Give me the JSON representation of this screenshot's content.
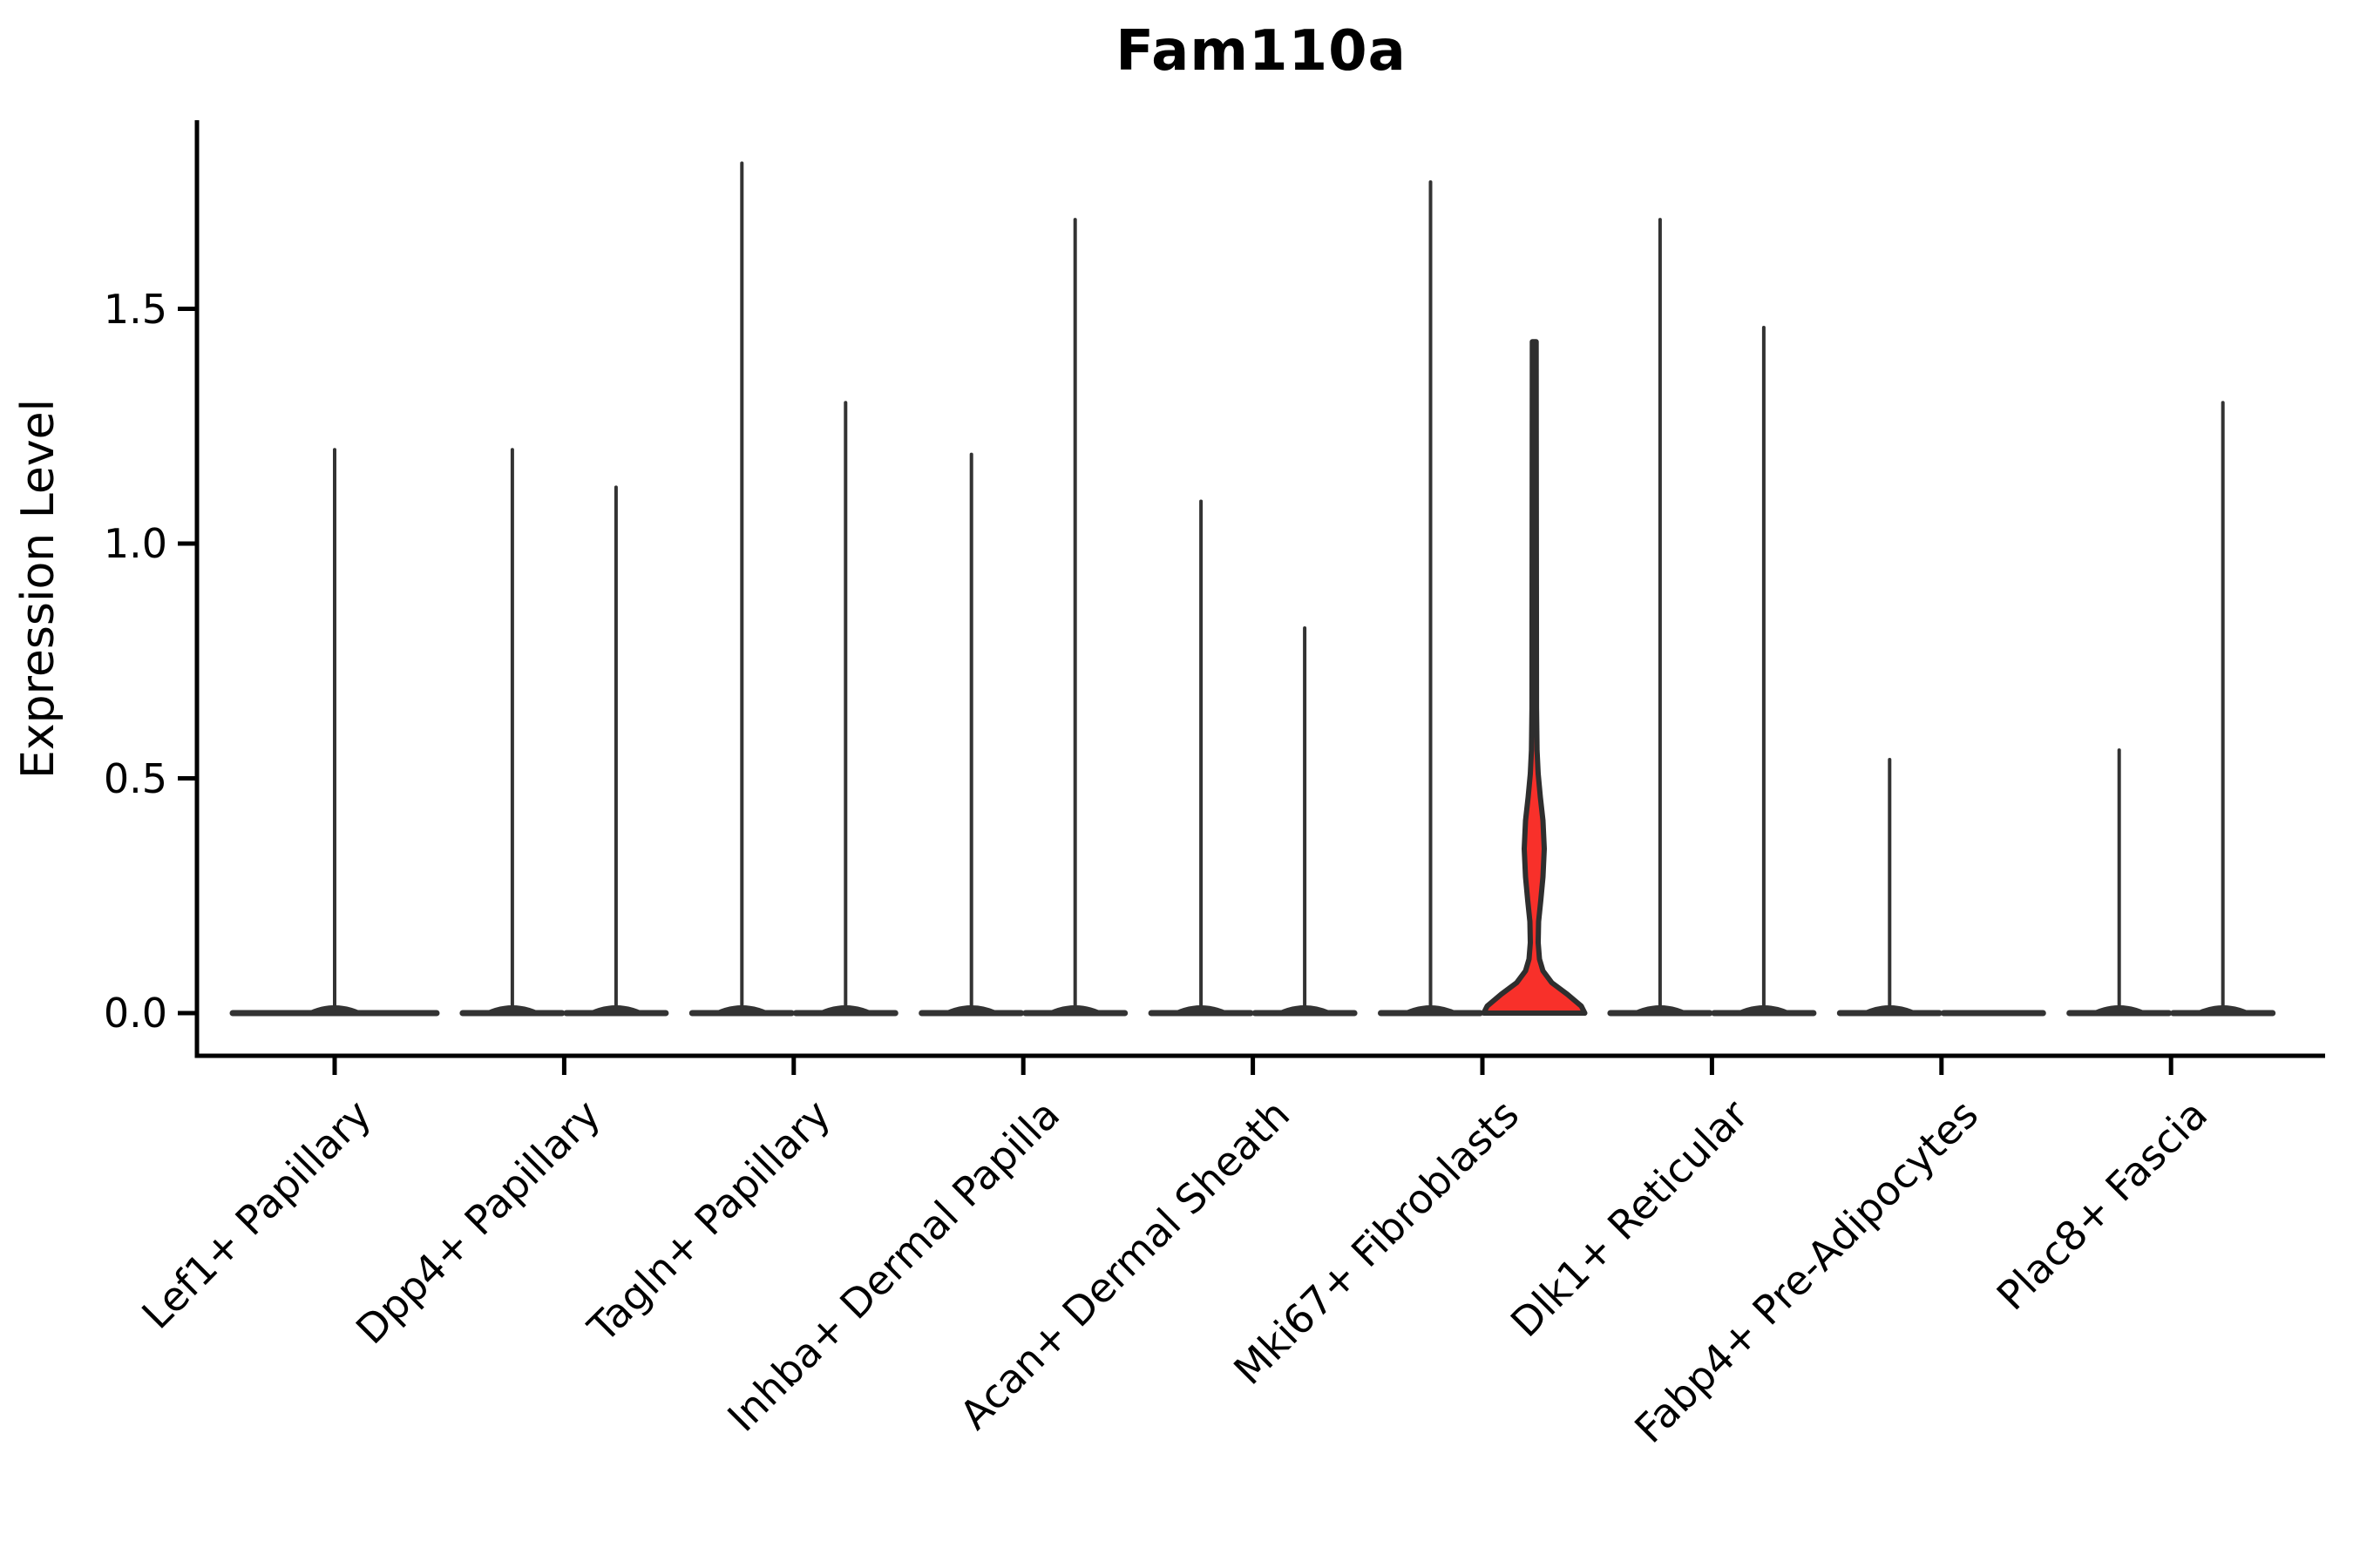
{
  "title": "Fam110a",
  "axes": {
    "ylabel": "Expression Level",
    "ytick_labels": [
      "0.0",
      "0.5",
      "1.0",
      "1.5"
    ],
    "xtick_labels": [
      "Lef1+ Papillary",
      "Dpp4+ Papillary",
      "Tagln+ Papillary",
      "Inhba+ Dermal Papilla",
      "Acan+ Dermal Sheath",
      "Mki67+ Fibroblasts",
      "Dlk1+ Reticular",
      "Fabp4+ Pre-Adipocytes",
      "Plac8+ Fascia"
    ]
  },
  "chart_data": {
    "type": "violin",
    "title": "Fam110a",
    "xlabel": "",
    "ylabel": "Expression Level",
    "ylim": [
      0,
      1.9
    ],
    "yticks": [
      0.0,
      0.5,
      1.0,
      1.5
    ],
    "grid": false,
    "legend": null,
    "categories": [
      "Lef1+ Papillary",
      "Dpp4+ Papillary",
      "Tagln+ Papillary",
      "Inhba+ Dermal Papilla",
      "Acan+ Dermal Sheath",
      "Mki67+ Fibroblasts",
      "Dlk1+ Reticular",
      "Fabp4+ Pre-Adipocytes",
      "Plac8+ Fascia"
    ],
    "violins": [
      {
        "category": "Lef1+ Papillary",
        "slot": "full",
        "max_expression": 1.2,
        "highlighted": false
      },
      {
        "category": "Dpp4+ Papillary",
        "slot": "left",
        "max_expression": 1.2,
        "highlighted": false
      },
      {
        "category": "Dpp4+ Papillary",
        "slot": "right",
        "max_expression": 1.12,
        "highlighted": false
      },
      {
        "category": "Tagln+ Papillary",
        "slot": "left",
        "max_expression": 1.81,
        "highlighted": false
      },
      {
        "category": "Tagln+ Papillary",
        "slot": "right",
        "max_expression": 1.3,
        "highlighted": false
      },
      {
        "category": "Inhba+ Dermal Papilla",
        "slot": "left",
        "max_expression": 1.19,
        "highlighted": false
      },
      {
        "category": "Inhba+ Dermal Papilla",
        "slot": "right",
        "max_expression": 1.69,
        "highlighted": false
      },
      {
        "category": "Acan+ Dermal Sheath",
        "slot": "left",
        "max_expression": 1.09,
        "highlighted": false
      },
      {
        "category": "Acan+ Dermal Sheath",
        "slot": "right",
        "max_expression": 0.82,
        "highlighted": false
      },
      {
        "category": "Mki67+ Fibroblasts",
        "slot": "left",
        "max_expression": 1.77,
        "highlighted": false
      },
      {
        "category": "Mki67+ Fibroblasts",
        "slot": "right",
        "max_expression": 1.43,
        "highlighted": true
      },
      {
        "category": "Dlk1+ Reticular",
        "slot": "left",
        "max_expression": 1.69,
        "highlighted": false
      },
      {
        "category": "Dlk1+ Reticular",
        "slot": "right",
        "max_expression": 1.46,
        "highlighted": false
      },
      {
        "category": "Fabp4+ Pre-Adipocytes",
        "slot": "left",
        "max_expression": 0.54,
        "highlighted": false
      },
      {
        "category": "Fabp4+ Pre-Adipocytes",
        "slot": "right",
        "max_expression": 0.0,
        "highlighted": false
      },
      {
        "category": "Plac8+ Fascia",
        "slot": "left",
        "max_expression": 0.56,
        "highlighted": false
      },
      {
        "category": "Plac8+ Fascia",
        "slot": "right",
        "max_expression": 1.3,
        "highlighted": false
      }
    ],
    "highlight_profile": [
      [
        0.0,
        58
      ],
      [
        0.015,
        54
      ],
      [
        0.04,
        38
      ],
      [
        0.065,
        20
      ],
      [
        0.09,
        10
      ],
      [
        0.115,
        6
      ],
      [
        0.15,
        4.5
      ],
      [
        0.195,
        5
      ],
      [
        0.24,
        7.5
      ],
      [
        0.29,
        10
      ],
      [
        0.35,
        11.5
      ],
      [
        0.41,
        10
      ],
      [
        0.46,
        7
      ],
      [
        0.51,
        4.5
      ],
      [
        0.56,
        3.2
      ],
      [
        0.65,
        2.6
      ],
      [
        1.43,
        2.2
      ]
    ],
    "colors": {
      "violin_line": "#333333",
      "highlight_fill": "#f8302a",
      "highlight_stroke": "#2e2e2e",
      "axis": "#000000",
      "text": "#000000",
      "background": "#ffffff"
    }
  }
}
